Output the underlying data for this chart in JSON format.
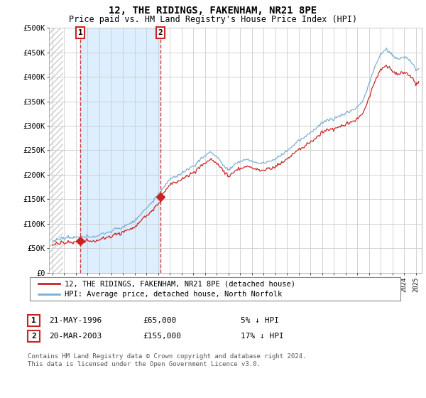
{
  "title": "12, THE RIDINGS, FAKENHAM, NR21 8PE",
  "subtitle": "Price paid vs. HM Land Registry's House Price Index (HPI)",
  "sale1_date": "21-MAY-1996",
  "sale1_price": 65000,
  "sale1_pct": "5%",
  "sale1_label": "5% ↓ HPI",
  "sale2_date": "20-MAR-2003",
  "sale2_price": 155000,
  "sale2_label": "17% ↓ HPI",
  "legend_red": "12, THE RIDINGS, FAKENHAM, NR21 8PE (detached house)",
  "legend_blue": "HPI: Average price, detached house, North Norfolk",
  "footer": "Contains HM Land Registry data © Crown copyright and database right 2024.\nThis data is licensed under the Open Government Licence v3.0.",
  "hpi_color": "#7bafd4",
  "price_color": "#cc2222",
  "annotation_box_color": "#cc2222",
  "shade_color": "#ddeeff",
  "hatch_color": "#bbbbbb",
  "grid_color": "#cccccc",
  "ylim_max": 500000,
  "ylim_min": 0,
  "sale1_year": 1996.38,
  "sale2_year": 2003.21
}
